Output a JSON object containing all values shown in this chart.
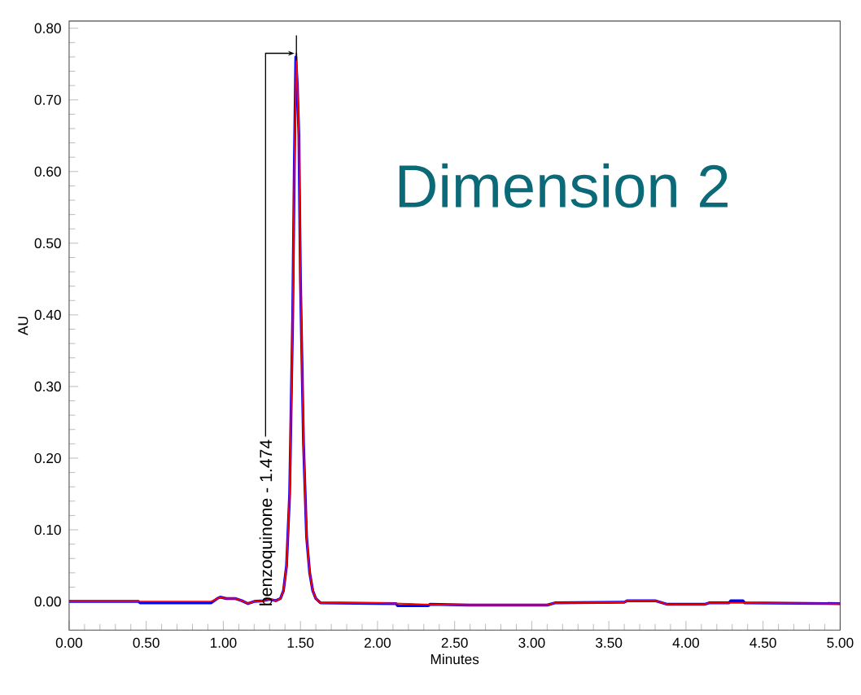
{
  "chart_data": {
    "type": "line",
    "xlabel": "Minutes",
    "ylabel": "AU",
    "annotations": [
      {
        "text": "benzoquinone - 1.474",
        "x": 1.474,
        "y": 0.765
      },
      "Dimension 2"
    ],
    "xlim": [
      0,
      5
    ],
    "ylim": [
      -0.04,
      0.81
    ],
    "xticks": [
      {
        "value": 0,
        "label": "0.00"
      },
      {
        "value": 0.5,
        "label": "0.50"
      },
      {
        "value": 1,
        "label": "1.00"
      },
      {
        "value": 1.5,
        "label": "1.50"
      },
      {
        "value": 2,
        "label": "2.00"
      },
      {
        "value": 2.5,
        "label": "2.50"
      },
      {
        "value": 3,
        "label": "3.00"
      },
      {
        "value": 3.5,
        "label": "3.50"
      },
      {
        "value": 4,
        "label": "4.00"
      },
      {
        "value": 4.5,
        "label": "4.50"
      },
      {
        "value": 5,
        "label": "5.00"
      }
    ],
    "yticks": [
      {
        "value": 0,
        "label": "0.00"
      },
      {
        "value": 0.1,
        "label": "0.10"
      },
      {
        "value": 0.2,
        "label": "0.20"
      },
      {
        "value": 0.3,
        "label": "0.30"
      },
      {
        "value": 0.4,
        "label": "0.40"
      },
      {
        "value": 0.5,
        "label": "0.50"
      },
      {
        "value": 0.6,
        "label": "0.60"
      },
      {
        "value": 0.7,
        "label": "0.70"
      },
      {
        "value": 0.8,
        "label": "0.80"
      }
    ],
    "marker": "none",
    "line_style": "solid",
    "series": [
      {
        "color": "#0000ff",
        "x": [
          0,
          0.45,
          0.46,
          0.92,
          0.96,
          0.98,
          1.02,
          1.08,
          1.12,
          1.16,
          1.2,
          1.26,
          1.3,
          1.34,
          1.37,
          1.39,
          1.41,
          1.43,
          1.45,
          1.46,
          1.47,
          1.48,
          1.49,
          1.5,
          1.52,
          1.54,
          1.56,
          1.58,
          1.6,
          1.63,
          2.12,
          2.13,
          2.33,
          2.34,
          2.6,
          3.1,
          3.15,
          3.6,
          3.62,
          3.8,
          3.88,
          4.12,
          4.15,
          4.28,
          4.29,
          4.37,
          4.38,
          5.0
        ],
        "values": [
          0,
          0,
          -0.002,
          -0.002,
          0.004,
          0.006,
          0.004,
          0.004,
          0.001,
          -0.003,
          0,
          0.001,
          0.003,
          0.001,
          0.004,
          0.015,
          0.05,
          0.15,
          0.4,
          0.6,
          0.76,
          0.72,
          0.65,
          0.45,
          0.22,
          0.09,
          0.04,
          0.015,
          0.004,
          -0.002,
          -0.003,
          -0.006,
          -0.006,
          -0.004,
          -0.005,
          -0.005,
          -0.002,
          -0.001,
          0.001,
          0.001,
          -0.004,
          -0.004,
          -0.002,
          -0.002,
          0.001,
          0.001,
          -0.002,
          -0.003
        ]
      },
      {
        "color": "#ff0000",
        "x": [
          0,
          0.45,
          0.92,
          0.96,
          0.98,
          1.02,
          1.08,
          1.12,
          1.16,
          1.2,
          1.26,
          1.3,
          1.34,
          1.37,
          1.39,
          1.41,
          1.43,
          1.45,
          1.46,
          1.474,
          1.49,
          1.5,
          1.52,
          1.54,
          1.56,
          1.58,
          1.6,
          1.63,
          2.0,
          2.3,
          2.6,
          3.1,
          3.15,
          3.6,
          3.62,
          3.8,
          3.88,
          4.12,
          4.15,
          4.4,
          5.0
        ],
        "values": [
          0,
          0,
          0,
          0.004,
          0.006,
          0.004,
          0.004,
          0.001,
          -0.003,
          0,
          0.001,
          0.003,
          0.001,
          0.004,
          0.015,
          0.05,
          0.15,
          0.4,
          0.6,
          0.765,
          0.65,
          0.45,
          0.22,
          0.09,
          0.04,
          0.015,
          0.004,
          -0.002,
          -0.002,
          -0.004,
          -0.005,
          -0.005,
          -0.002,
          -0.001,
          0.001,
          0.001,
          -0.004,
          -0.004,
          -0.002,
          -0.002,
          -0.003
        ]
      }
    ]
  }
}
